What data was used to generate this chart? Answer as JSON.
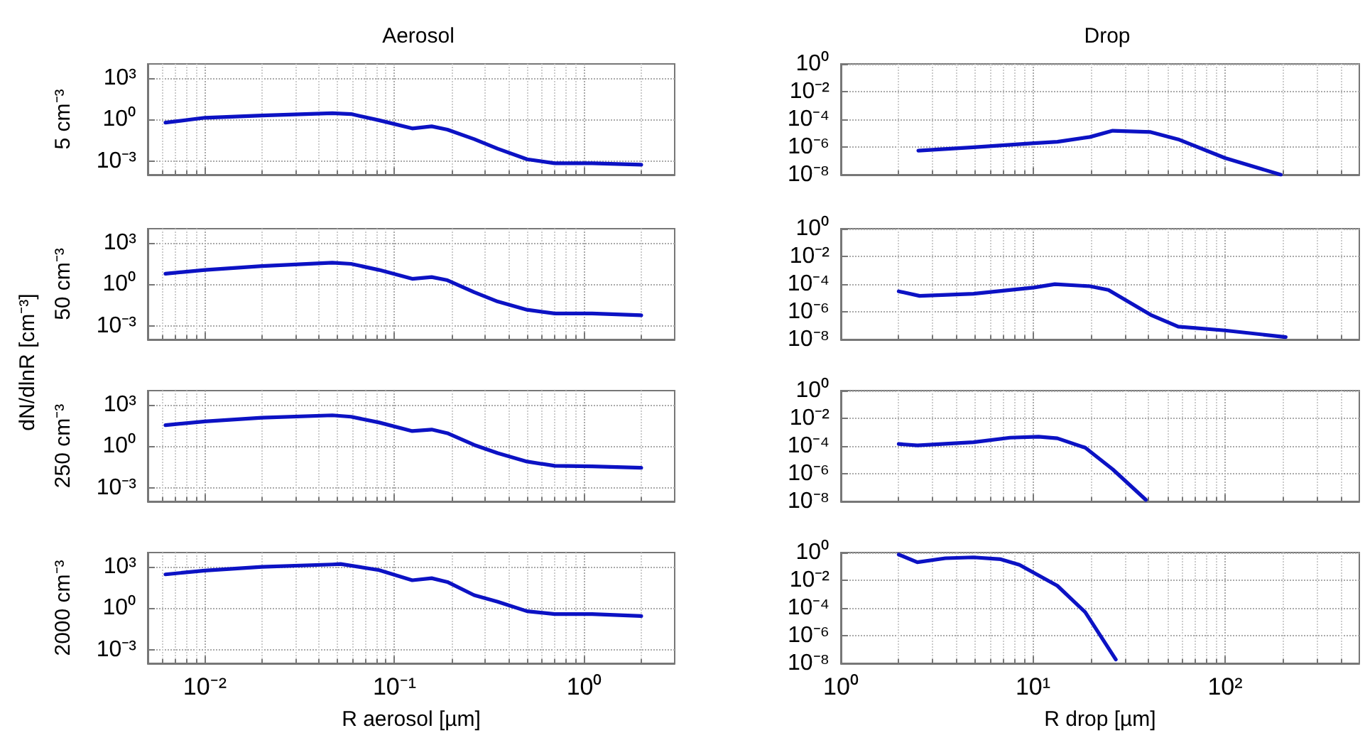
{
  "chart_data": [
    {
      "type": "line",
      "title": "Aerosol",
      "ylabel": "5 cm⁻³",
      "annotations": [
        "dN/dlnR [cm⁻³]"
      ],
      "log": "xy",
      "grid": true,
      "tick_labels": "y",
      "color": "#0c12c4",
      "xlim": [
        0.005,
        3
      ],
      "ylim": [
        0.0001,
        10000
      ],
      "xticks": [
        {
          "value": 0.01,
          "label": null
        },
        {
          "value": 0.1,
          "label": null
        },
        {
          "value": 1,
          "label": null
        }
      ],
      "yticks": [
        {
          "value": 1000,
          "label": "10³"
        },
        {
          "value": 1,
          "label": "10⁰"
        },
        {
          "value": 0.001,
          "label": "10⁻³"
        }
      ],
      "x": [
        0.0062,
        0.01,
        0.02,
        0.047,
        0.059,
        0.083,
        0.124,
        0.157,
        0.19,
        0.263,
        0.35,
        0.5,
        0.7,
        1.1,
        2.0
      ],
      "values": [
        0.58,
        1.3,
        1.9,
        2.8,
        2.4,
        0.85,
        0.22,
        0.31,
        0.18,
        0.037,
        0.0076,
        0.0013,
        0.00067,
        0.00067,
        0.00053
      ]
    },
    {
      "type": "line",
      "title": "Drop",
      "log": "xy",
      "grid": true,
      "tick_labels": "y",
      "color": "#0c12c4",
      "xlim": [
        1,
        500
      ],
      "ylim": [
        1e-08,
        1
      ],
      "xticks": [
        {
          "value": 1,
          "label": null
        },
        {
          "value": 10,
          "label": null
        },
        {
          "value": 100,
          "label": null
        }
      ],
      "yticks": [
        {
          "value": 1,
          "label": "10⁰"
        },
        {
          "value": 0.01,
          "label": "10⁻²"
        },
        {
          "value": 0.0001,
          "label": "10⁻⁴"
        },
        {
          "value": 1e-06,
          "label": "10⁻⁶"
        },
        {
          "value": 1e-08,
          "label": "10⁻⁸"
        }
      ],
      "x": [
        2.53,
        4.9,
        10.1,
        13.4,
        19.8,
        26,
        41,
        57,
        100,
        195
      ],
      "values": [
        5.5e-07,
        9.5e-07,
        1.9e-06,
        2.4e-06,
        5.3e-06,
        1.5e-05,
        1.2e-05,
        3.6e-06,
        1.6e-07,
        1e-08
      ]
    },
    {
      "type": "line",
      "ylabel": "50 cm⁻³",
      "log": "xy",
      "grid": true,
      "tick_labels": "y",
      "color": "#0c12c4",
      "xlim": [
        0.005,
        3
      ],
      "ylim": [
        0.0001,
        10000
      ],
      "xticks": [
        {
          "value": 0.01,
          "label": null
        },
        {
          "value": 0.1,
          "label": null
        },
        {
          "value": 1,
          "label": null
        }
      ],
      "yticks": [
        {
          "value": 1000,
          "label": "10³"
        },
        {
          "value": 1,
          "label": "10⁰"
        },
        {
          "value": 0.001,
          "label": "10⁻³"
        }
      ],
      "x": [
        0.0062,
        0.01,
        0.02,
        0.047,
        0.059,
        0.083,
        0.124,
        0.157,
        0.19,
        0.263,
        0.35,
        0.5,
        0.7,
        1.1,
        2.0
      ],
      "values": [
        5.6,
        10.5,
        20,
        35,
        29,
        10.5,
        2.4,
        3.2,
        1.9,
        0.26,
        0.055,
        0.014,
        0.0076,
        0.0076,
        0.0056
      ]
    },
    {
      "type": "line",
      "log": "xy",
      "grid": true,
      "tick_labels": "y",
      "color": "#0c12c4",
      "xlim": [
        1,
        500
      ],
      "ylim": [
        1e-08,
        1
      ],
      "xticks": [
        {
          "value": 1,
          "label": null
        },
        {
          "value": 10,
          "label": null
        },
        {
          "value": 100,
          "label": null
        }
      ],
      "yticks": [
        {
          "value": 1,
          "label": "10⁰"
        },
        {
          "value": 0.01,
          "label": "10⁻²"
        },
        {
          "value": 0.0001,
          "label": "10⁻⁴"
        },
        {
          "value": 1e-06,
          "label": "10⁻⁶"
        },
        {
          "value": 1e-08,
          "label": "10⁻⁸"
        }
      ],
      "x": [
        2.0,
        2.57,
        4.9,
        10.1,
        13,
        19.8,
        24.7,
        41,
        57,
        100,
        207
      ],
      "values": [
        3e-05,
        1.4e-05,
        2e-05,
        5.6e-05,
        9.8e-05,
        7e-05,
        3.8e-05,
        6e-07,
        8.5e-08,
        4.5e-08,
        1.5e-08
      ]
    },
    {
      "type": "line",
      "ylabel": "250 cm⁻³",
      "log": "xy",
      "grid": true,
      "tick_labels": "y",
      "color": "#0c12c4",
      "xlim": [
        0.005,
        3
      ],
      "ylim": [
        0.0001,
        10000
      ],
      "xticks": [
        {
          "value": 0.01,
          "label": null
        },
        {
          "value": 0.1,
          "label": null
        },
        {
          "value": 1,
          "label": null
        }
      ],
      "yticks": [
        {
          "value": 1000,
          "label": "10³"
        },
        {
          "value": 1,
          "label": "10⁰"
        },
        {
          "value": 0.001,
          "label": "10⁻³"
        }
      ],
      "x": [
        0.0062,
        0.01,
        0.02,
        0.047,
        0.059,
        0.083,
        0.124,
        0.157,
        0.19,
        0.263,
        0.35,
        0.5,
        0.7,
        1.1,
        2.0
      ],
      "values": [
        32,
        60,
        110,
        165,
        130,
        50,
        12,
        15.5,
        8.4,
        1.2,
        0.31,
        0.075,
        0.037,
        0.034,
        0.027
      ]
    },
    {
      "type": "line",
      "log": "xy",
      "grid": true,
      "tick_labels": "y",
      "color": "#0c12c4",
      "xlim": [
        1,
        500
      ],
      "ylim": [
        1e-08,
        1
      ],
      "xticks": [
        {
          "value": 1,
          "label": null
        },
        {
          "value": 10,
          "label": null
        },
        {
          "value": 100,
          "label": null
        }
      ],
      "yticks": [
        {
          "value": 1,
          "label": "10⁰"
        },
        {
          "value": 0.01,
          "label": "10⁻²"
        },
        {
          "value": 0.0001,
          "label": "10⁻⁴"
        },
        {
          "value": 1e-06,
          "label": "10⁻⁶"
        },
        {
          "value": 1e-08,
          "label": "10⁻⁸"
        }
      ],
      "x": [
        2.0,
        2.5,
        4.9,
        7.6,
        10.7,
        13.4,
        18.7,
        26,
        38.7
      ],
      "values": [
        0.00014,
        0.00011,
        0.00019,
        0.0004,
        0.00047,
        0.00036,
        7.6e-05,
        2.1e-06,
        1.3e-08
      ]
    },
    {
      "type": "line",
      "ylabel": "2000 cm⁻³",
      "xlabel": "R aerosol [µm]",
      "log": "xy",
      "grid": true,
      "color": "#0c12c4",
      "xlim": [
        0.005,
        3
      ],
      "ylim": [
        0.0001,
        10000
      ],
      "xticks": [
        {
          "value": 0.01,
          "label": "10⁻²"
        },
        {
          "value": 0.1,
          "label": "10⁻¹"
        },
        {
          "value": 1,
          "label": "10⁰"
        }
      ],
      "yticks": [
        {
          "value": 1000,
          "label": "10³"
        },
        {
          "value": 1,
          "label": "10⁰"
        },
        {
          "value": 0.001,
          "label": "10⁻³"
        }
      ],
      "x": [
        0.0062,
        0.01,
        0.02,
        0.047,
        0.052,
        0.083,
        0.124,
        0.157,
        0.19,
        0.263,
        0.35,
        0.5,
        0.7,
        1.1,
        2.0
      ],
      "values": [
        265,
        500,
        930,
        1380,
        1490,
        540,
        100,
        140,
        75,
        8.4,
        2.8,
        0.58,
        0.36,
        0.36,
        0.26
      ]
    },
    {
      "type": "line",
      "xlabel": "R drop [µm]",
      "log": "xy",
      "grid": true,
      "color": "#0c12c4",
      "xlim": [
        1,
        500
      ],
      "ylim": [
        1e-08,
        1
      ],
      "xticks": [
        {
          "value": 1,
          "label": "10⁰"
        },
        {
          "value": 10,
          "label": "10¹"
        },
        {
          "value": 100,
          "label": "10²"
        }
      ],
      "yticks": [
        {
          "value": 1,
          "label": "10⁰"
        },
        {
          "value": 0.01,
          "label": "10⁻²"
        },
        {
          "value": 0.0001,
          "label": "10⁻⁴"
        },
        {
          "value": 1e-06,
          "label": "10⁻⁶"
        },
        {
          "value": 1e-08,
          "label": "10⁻⁸"
        }
      ],
      "x": [
        2.0,
        2.5,
        3.5,
        4.9,
        6.8,
        8.5,
        13.4,
        18.7,
        27
      ],
      "values": [
        0.72,
        0.2,
        0.39,
        0.45,
        0.33,
        0.13,
        0.004,
        5e-05,
        1.9e-08
      ]
    }
  ]
}
